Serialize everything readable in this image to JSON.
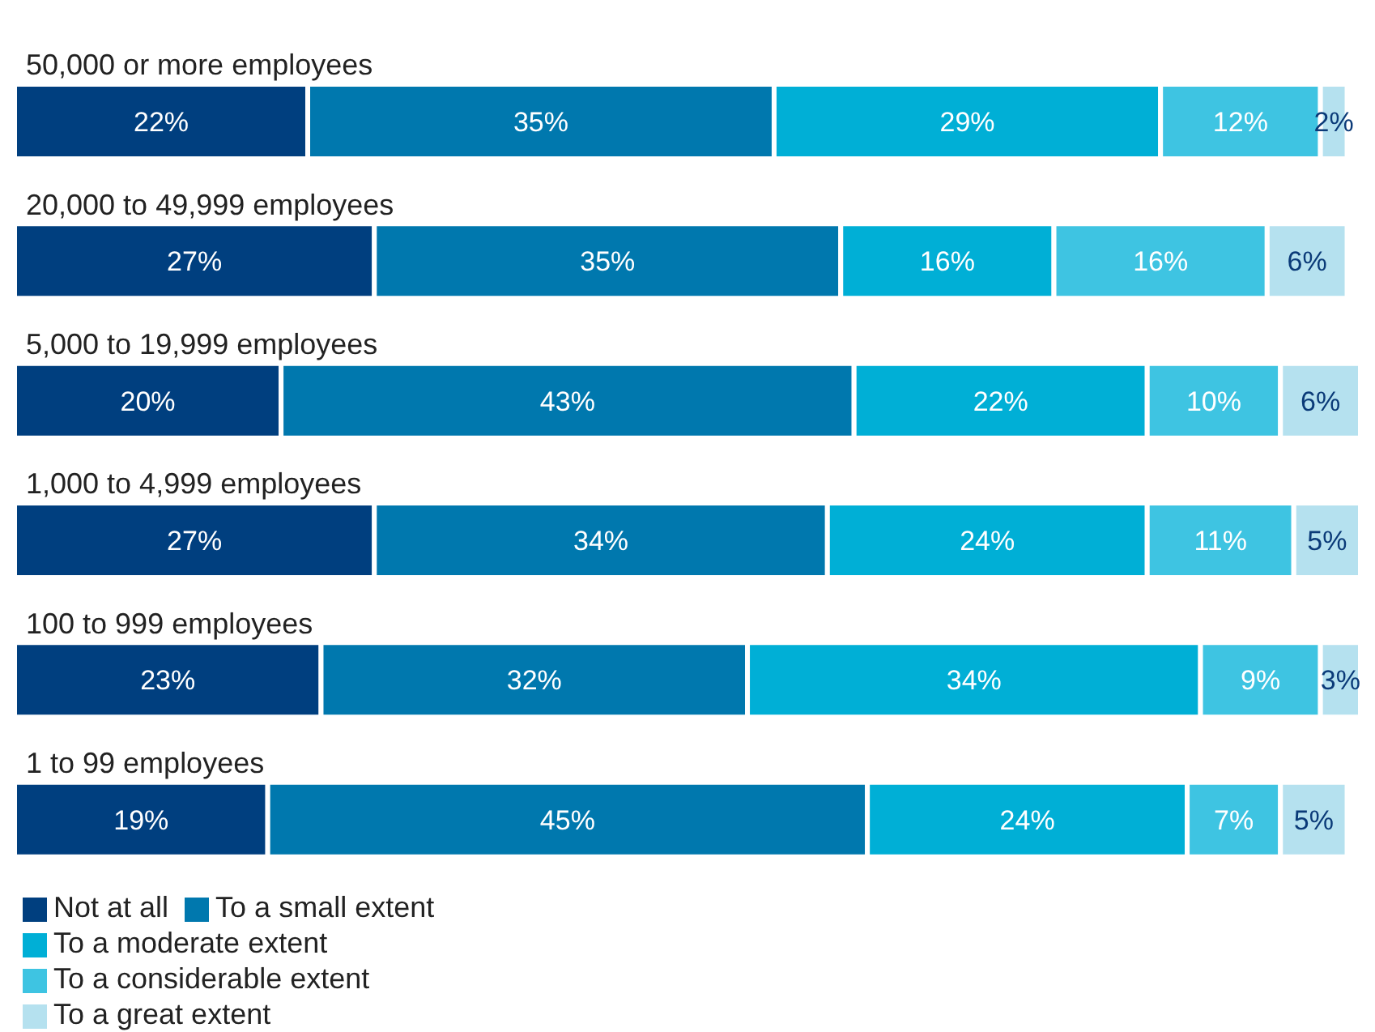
{
  "chart_data": {
    "type": "bar",
    "orientation": "horizontal",
    "stacked": true,
    "legend": "bottom left",
    "tick_labels": "y",
    "categories": [
      "50,000 or more employees",
      "20,000 to 49,999 employees",
      "5,000 to 19,999 employees",
      "1,000 to 4,999 employees",
      "100 to 999 employees",
      "1 to 99 employees"
    ],
    "series": [
      {
        "name": "Not at all",
        "color": "#003f7f",
        "values": [
          22,
          27,
          20,
          27,
          23,
          19
        ],
        "value_labels": [
          "22%",
          "27%",
          "20%",
          "27%",
          "23%",
          "19%"
        ]
      },
      {
        "name": "To a small extent",
        "color": "#0078ae",
        "values": [
          35,
          35,
          43,
          34,
          32,
          45
        ],
        "value_labels": [
          "35%",
          "35%",
          "43%",
          "34%",
          "32%",
          "45%"
        ]
      },
      {
        "name": "To a moderate extent",
        "color": "#00afd6",
        "values": [
          29,
          16,
          22,
          24,
          34,
          24
        ],
        "value_labels": [
          "29%",
          "16%",
          "22%",
          "24%",
          "34%",
          "24%"
        ]
      },
      {
        "name": "To a considerable extent",
        "color": "#3ec4e2",
        "values": [
          12,
          16,
          10,
          11,
          9,
          7
        ],
        "value_labels": [
          "12%",
          "16%",
          "10%",
          "11%",
          "9%",
          "7%"
        ]
      },
      {
        "name": "To a great extent",
        "color": "#b5e1ef",
        "values": [
          2,
          6,
          6,
          5,
          3,
          5
        ],
        "value_labels": [
          "2%",
          "6%",
          "6%",
          "5%",
          "3%",
          "5%"
        ]
      }
    ]
  }
}
